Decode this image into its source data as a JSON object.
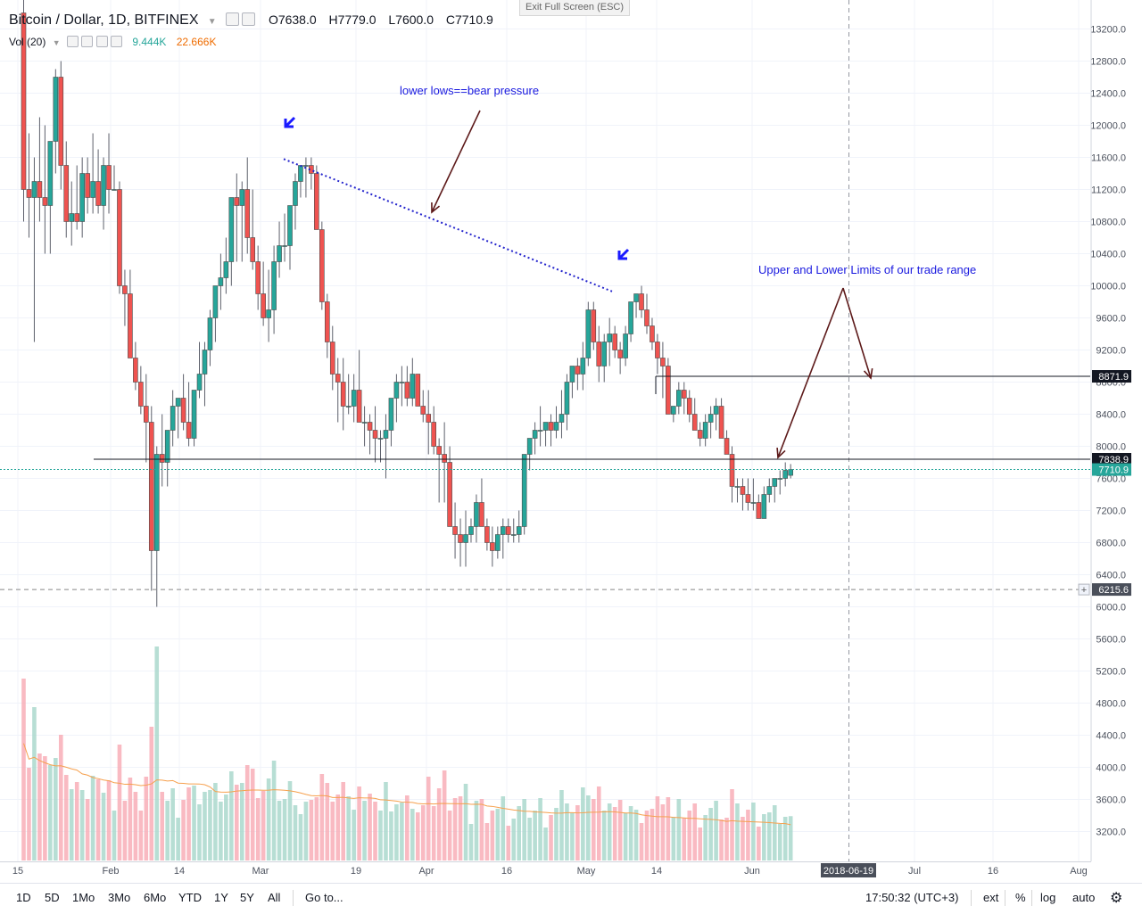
{
  "header": {
    "title": "Bitcoin / Dollar, 1D, BITFINEX",
    "open": "O7638.0",
    "high": "H7779.0",
    "low": "L7600.0",
    "close": "C7710.9",
    "vol_label": "Vol (20)",
    "vol_value": "9.444K",
    "vol_ma": "22.666K",
    "exit_fullscreen": "Exit Full Screen (ESC)"
  },
  "toolbar": {
    "ranges": [
      "1D",
      "5D",
      "1Mo",
      "3Mo",
      "6Mo",
      "YTD",
      "1Y",
      "5Y",
      "All"
    ],
    "goto": "Go to...",
    "time": "17:50:32 (UTC+3)",
    "ext": "ext",
    "percent": "%",
    "log": "log",
    "auto": "auto"
  },
  "colors": {
    "up": "#26a69a",
    "down": "#ef5350",
    "up_vol": "#a5d6c9",
    "down_vol": "#f7a9b3",
    "annotation_text": "#1a1adf",
    "arrow": "#5d1a1a",
    "trendline": "#2222cc"
  },
  "chart_data": {
    "type": "candlestick",
    "symbol": "Bitcoin / Dollar",
    "interval": "1D",
    "exchange": "BITFINEX",
    "price_axis_ticks": [
      13200,
      12800,
      12400,
      12000,
      11600,
      11200,
      10800,
      10400,
      10000,
      9600,
      9200,
      8800,
      8400,
      8000,
      7600,
      7200,
      6800,
      6400,
      6000,
      5600,
      5200,
      4800,
      4400,
      4000,
      3600,
      3200
    ],
    "ylim": [
      5900,
      13300
    ],
    "time_axis_labels": [
      "15",
      "Feb",
      "14",
      "Mar",
      "19",
      "Apr",
      "16",
      "May",
      "14",
      "Jun",
      "2018-06-19",
      "Jul",
      "16",
      "Aug"
    ],
    "candles_ohlc": [
      [
        13400,
        13900,
        10800,
        11200
      ],
      [
        11200,
        11900,
        10600,
        11100
      ],
      [
        11100,
        11600,
        9300,
        11300
      ],
      [
        11300,
        12100,
        10800,
        11100
      ],
      [
        11100,
        12000,
        10400,
        11000
      ],
      [
        11000,
        11700,
        10400,
        11800
      ],
      [
        11800,
        12700,
        11400,
        12600
      ],
      [
        12600,
        12800,
        11200,
        11500
      ],
      [
        11500,
        11800,
        10600,
        10800
      ],
      [
        10800,
        11300,
        10500,
        10900
      ],
      [
        10900,
        11500,
        10700,
        10800
      ],
      [
        10800,
        11600,
        10600,
        11400
      ],
      [
        11400,
        11600,
        10900,
        11100
      ],
      [
        11100,
        11900,
        10900,
        11300
      ],
      [
        11300,
        11700,
        10900,
        11000
      ],
      [
        11000,
        11600,
        10700,
        11500
      ],
      [
        11500,
        11900,
        10900,
        11200
      ],
      [
        11200,
        11500,
        11200,
        11200
      ],
      [
        11200,
        11300,
        9900,
        10000
      ],
      [
        10000,
        10200,
        9500,
        9900
      ],
      [
        9900,
        10200,
        9200,
        9100
      ],
      [
        9100,
        9300,
        8700,
        8800
      ],
      [
        8800,
        9000,
        8400,
        8500
      ],
      [
        8500,
        8900,
        7800,
        8300
      ],
      [
        8300,
        8500,
        6200,
        6700
      ],
      [
        6700,
        8000,
        6000,
        7900
      ],
      [
        7900,
        8400,
        7500,
        7800
      ],
      [
        7800,
        8100,
        7500,
        8200
      ],
      [
        8200,
        8700,
        8000,
        8500
      ],
      [
        8500,
        8600,
        8100,
        8600
      ],
      [
        8600,
        8900,
        8200,
        8300
      ],
      [
        8300,
        8800,
        8000,
        8100
      ],
      [
        8100,
        8700,
        8000,
        8700
      ],
      [
        8700,
        9300,
        8600,
        8900
      ],
      [
        8900,
        9300,
        8500,
        9200
      ],
      [
        9200,
        9700,
        9000,
        9600
      ],
      [
        9600,
        10000,
        9300,
        10000
      ],
      [
        10000,
        10400,
        9700,
        10100
      ],
      [
        10100,
        10600,
        9900,
        10300
      ],
      [
        10300,
        11000,
        10000,
        11100
      ],
      [
        11100,
        11400,
        10300,
        11000
      ],
      [
        11000,
        11300,
        10300,
        11200
      ],
      [
        11200,
        11600,
        10400,
        10600
      ],
      [
        10600,
        11200,
        10200,
        10300
      ],
      [
        10300,
        10500,
        9700,
        9900
      ],
      [
        9900,
        10300,
        9500,
        9600
      ],
      [
        9600,
        10200,
        9300,
        9700
      ],
      [
        9700,
        10500,
        9400,
        10300
      ],
      [
        10300,
        10800,
        10100,
        10500
      ],
      [
        10500,
        10900,
        10300,
        10500
      ],
      [
        10500,
        11000,
        10200,
        11000
      ],
      [
        11000,
        11400,
        10700,
        11300
      ],
      [
        11300,
        11500,
        11100,
        11500
      ],
      [
        11500,
        11600,
        11100,
        11500
      ],
      [
        11500,
        11600,
        11200,
        11400
      ],
      [
        11400,
        11500,
        10700,
        10700
      ],
      [
        10700,
        10800,
        9700,
        9800
      ],
      [
        9800,
        9900,
        9100,
        9300
      ],
      [
        9300,
        9500,
        8700,
        8900
      ],
      [
        8900,
        9100,
        8300,
        8800
      ],
      [
        8800,
        9100,
        8200,
        8500
      ],
      [
        8500,
        8900,
        8400,
        8500
      ],
      [
        8500,
        8900,
        8300,
        8700
      ],
      [
        8700,
        9200,
        8300,
        8300
      ],
      [
        8300,
        8500,
        8000,
        8300
      ],
      [
        8300,
        8400,
        7900,
        8200
      ],
      [
        8200,
        8500,
        7800,
        8100
      ],
      [
        8100,
        8200,
        7800,
        8100
      ],
      [
        8100,
        8400,
        7600,
        8200
      ],
      [
        8200,
        8600,
        8000,
        8600
      ],
      [
        8600,
        8900,
        8300,
        8800
      ],
      [
        8800,
        9000,
        8500,
        8800
      ],
      [
        8800,
        9000,
        8500,
        8600
      ],
      [
        8600,
        9100,
        8500,
        8900
      ],
      [
        8900,
        8900,
        8500,
        8500
      ],
      [
        8500,
        8700,
        8300,
        8400
      ],
      [
        8400,
        8700,
        7900,
        8300
      ],
      [
        8300,
        8500,
        7900,
        8000
      ],
      [
        8000,
        8100,
        7300,
        7900
      ],
      [
        7900,
        8300,
        7300,
        7800
      ],
      [
        7800,
        8000,
        7400,
        7000
      ],
      [
        7000,
        7300,
        6600,
        6900
      ],
      [
        6900,
        7100,
        6500,
        6800
      ],
      [
        6800,
        7200,
        6500,
        6900
      ],
      [
        6900,
        7100,
        6800,
        7000
      ],
      [
        7000,
        7400,
        6800,
        7300
      ],
      [
        7300,
        7600,
        7100,
        7000
      ],
      [
        7000,
        7100,
        6700,
        6800
      ],
      [
        6800,
        7000,
        6500,
        6700
      ],
      [
        6700,
        7000,
        6600,
        6900
      ],
      [
        6900,
        7100,
        6600,
        7000
      ],
      [
        7000,
        7100,
        6800,
        6900
      ],
      [
        6900,
        7100,
        6800,
        6900
      ],
      [
        6900,
        7200,
        6800,
        7000
      ],
      [
        7000,
        7300,
        6900,
        7900
      ],
      [
        7900,
        8100,
        7700,
        8100
      ],
      [
        8100,
        8300,
        7900,
        8200
      ],
      [
        8200,
        8500,
        8000,
        8200
      ],
      [
        8200,
        8300,
        8000,
        8300
      ],
      [
        8300,
        8400,
        8000,
        8200
      ],
      [
        8200,
        8500,
        8100,
        8300
      ],
      [
        8300,
        8700,
        8100,
        8400
      ],
      [
        8400,
        8900,
        8200,
        8800
      ],
      [
        8800,
        9000,
        8600,
        9000
      ],
      [
        9000,
        9100,
        8700,
        8900
      ],
      [
        8900,
        9300,
        8700,
        9100
      ],
      [
        9100,
        9800,
        9000,
        9700
      ],
      [
        9700,
        9800,
        9200,
        9300
      ],
      [
        9300,
        9500,
        8800,
        9000
      ],
      [
        9000,
        9400,
        8800,
        9300
      ],
      [
        9300,
        9600,
        9000,
        9400
      ],
      [
        9400,
        9500,
        9100,
        9200
      ],
      [
        9200,
        9300,
        8900,
        9100
      ],
      [
        9100,
        9500,
        9000,
        9400
      ],
      [
        9400,
        9800,
        9300,
        9800
      ],
      [
        9800,
        9900,
        9600,
        9900
      ],
      [
        9900,
        10000,
        9600,
        9700
      ],
      [
        9700,
        9900,
        9400,
        9500
      ],
      [
        9500,
        9600,
        9200,
        9300
      ],
      [
        9300,
        9400,
        8900,
        9100
      ],
      [
        9100,
        9300,
        8600,
        9000
      ],
      [
        9000,
        9100,
        8400,
        8400
      ],
      [
        8400,
        8500,
        8300,
        8500
      ],
      [
        8500,
        8800,
        8400,
        8700
      ],
      [
        8700,
        8800,
        8400,
        8600
      ],
      [
        8600,
        8700,
        8300,
        8400
      ],
      [
        8400,
        8600,
        8200,
        8200
      ],
      [
        8200,
        8300,
        8000,
        8100
      ],
      [
        8100,
        8400,
        8000,
        8300
      ],
      [
        8300,
        8500,
        8100,
        8400
      ],
      [
        8400,
        8600,
        8200,
        8500
      ],
      [
        8500,
        8600,
        8200,
        8100
      ],
      [
        8100,
        8200,
        7900,
        7900
      ],
      [
        7900,
        8000,
        7300,
        7500
      ],
      [
        7500,
        7600,
        7300,
        7500
      ],
      [
        7500,
        7600,
        7200,
        7400
      ],
      [
        7400,
        7600,
        7200,
        7300
      ],
      [
        7300,
        7600,
        7200,
        7300
      ],
      [
        7300,
        7400,
        7100,
        7100
      ],
      [
        7100,
        7500,
        7100,
        7400
      ],
      [
        7400,
        7600,
        7300,
        7500
      ],
      [
        7500,
        7600,
        7300,
        7600
      ],
      [
        7600,
        7700,
        7400,
        7600
      ],
      [
        7600,
        7800,
        7500,
        7700
      ],
      [
        7638,
        7779,
        7600,
        7710.9
      ]
    ],
    "volume_axis_note": "volume shown in lower pane, values relative",
    "horizontal_levels": [
      {
        "price": 7838.9,
        "label": "7838.9"
      },
      {
        "price": 8871.9,
        "label": "8871.9"
      },
      {
        "price": 6215.6,
        "label": "6215.6",
        "style": "dashed"
      }
    ],
    "last_price": {
      "price": 7710.9,
      "label": "7710.9"
    },
    "annotations": [
      "lower lows==bear pressure",
      "Upper and Lower Limits of our trade range"
    ]
  }
}
